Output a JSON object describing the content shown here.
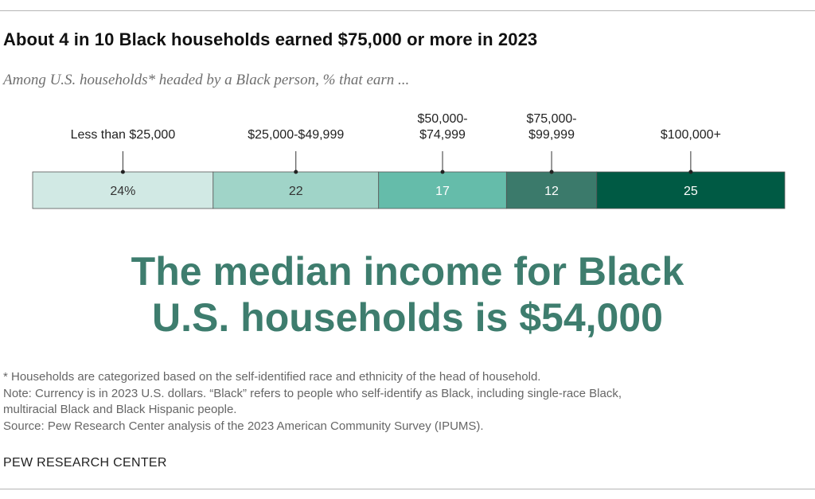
{
  "title": "About 4 in 10 Black households earned $75,000 or more in 2023",
  "subtitle": "Among U.S. households* headed by a Black person, % that earn ...",
  "chart_data": {
    "type": "bar",
    "orientation": "horizontal-stacked",
    "categories": [
      [
        "Less than $25,000"
      ],
      [
        "$25,000-$49,999"
      ],
      [
        "$50,000-",
        "$74,999"
      ],
      [
        "$75,000-",
        "$99,999"
      ],
      [
        "$100,000+"
      ]
    ],
    "values": [
      24,
      22,
      17,
      12,
      25
    ],
    "value_labels": [
      "24%",
      "22",
      "17",
      "12",
      "25"
    ],
    "colors": [
      "#d1e9e4",
      "#a0d4c8",
      "#65bcaa",
      "#3b7a6b",
      "#005a44"
    ],
    "value_text_colors": [
      "#333333",
      "#333333",
      "#ffffff",
      "#ffffff",
      "#ffffff"
    ]
  },
  "headline": [
    "The median income for Black",
    "U.S. households is $54,000"
  ],
  "notes": [
    "* Households are categorized based on the self-identified race and ethnicity of the head of household.",
    "Note: Currency is in 2023 U.S. dollars. “Black” refers to people who self-identify as Black, including single-race Black,",
    "multiracial Black and Black Hispanic people.",
    "Source: Pew Research Center analysis of the 2023 American Community Survey (IPUMS)."
  ],
  "brand": "PEW RESEARCH CENTER"
}
